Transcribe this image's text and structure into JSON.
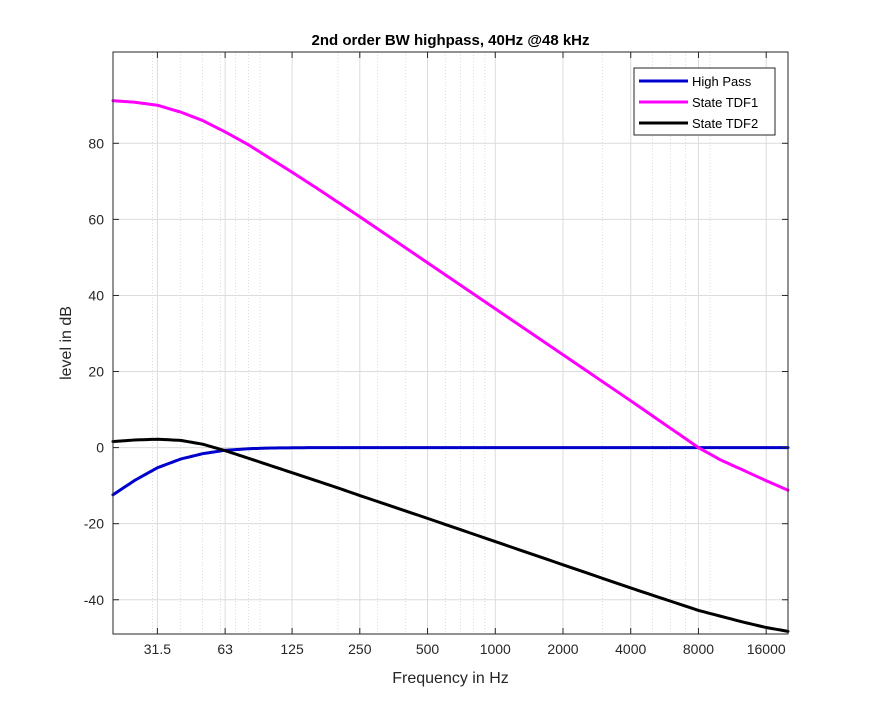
{
  "chart_data": {
    "type": "line",
    "title": "2nd order BW highpass, 40Hz @48 kHz",
    "xlabel": "Frequency in Hz",
    "ylabel": "level in dB",
    "xscale": "log",
    "xlim": [
      20,
      20000
    ],
    "ylim": [
      -49,
      104
    ],
    "xticks": [
      31.5,
      63,
      125,
      250,
      500,
      1000,
      2000,
      4000,
      8000,
      16000
    ],
    "xtick_labels": [
      "31.5",
      "63",
      "125",
      "250",
      "500",
      "1000",
      "2000",
      "4000",
      "8000",
      "16000"
    ],
    "yticks": [
      -40,
      -20,
      0,
      20,
      40,
      60,
      80
    ],
    "ytick_labels": [
      "-40",
      "-20",
      "0",
      "20",
      "40",
      "60",
      "80"
    ],
    "grid": true,
    "legend_position": "top-right",
    "series": [
      {
        "name": "High Pass",
        "color": "#0000cc",
        "x": [
          20,
          25,
          31.5,
          40,
          50,
          63,
          80,
          100,
          125,
          160,
          200,
          250,
          400,
          1000,
          2000,
          4000,
          8000,
          16000,
          20000
        ],
        "y": [
          -12.4,
          -8.6,
          -5.3,
          -3.0,
          -1.6,
          -0.7,
          -0.3,
          -0.1,
          -0.05,
          0,
          0,
          0,
          0,
          0,
          0,
          0,
          0,
          0,
          0
        ]
      },
      {
        "name": "State TDF1",
        "color": "#ff00ff",
        "x": [
          20,
          25,
          31.5,
          40,
          50,
          63,
          80,
          100,
          125,
          160,
          200,
          250,
          500,
          1000,
          2000,
          4000,
          8000,
          10000,
          12500,
          16000,
          20000
        ],
        "y": [
          91.2,
          90.8,
          90.0,
          88.2,
          86.0,
          83.0,
          79.6,
          76.0,
          72.4,
          68.3,
          64.5,
          60.7,
          48.6,
          36.5,
          24.4,
          12.3,
          0.0,
          -3.2,
          -5.8,
          -8.7,
          -11.2
        ]
      },
      {
        "name": "State TDF2",
        "color": "#000000",
        "x": [
          20,
          25,
          31.5,
          40,
          50,
          63,
          80,
          100,
          125,
          160,
          200,
          250,
          500,
          1000,
          2000,
          4000,
          8000,
          12500,
          16000,
          20000
        ],
        "y": [
          1.6,
          2.0,
          2.2,
          1.9,
          0.9,
          -0.8,
          -2.8,
          -4.7,
          -6.6,
          -8.7,
          -10.6,
          -12.6,
          -18.6,
          -24.7,
          -30.8,
          -36.9,
          -42.8,
          -45.8,
          -47.3,
          -48.3
        ]
      }
    ]
  }
}
